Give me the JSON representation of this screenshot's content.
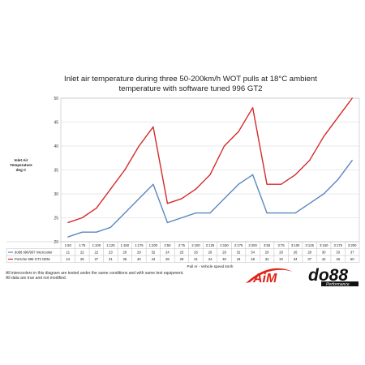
{
  "chart_data": {
    "type": "line",
    "title_lines": [
      "Inlet air temperature during three 50-200km/h WOT pulls at 18°C ambient",
      "temperature with software tuned 996 GT2"
    ],
    "ylabel_lines": [
      "Inlet Air",
      "Temperature",
      "deg C"
    ],
    "xlabel": "Pull nr - Vehicle speed km/h",
    "ylim": [
      20,
      50
    ],
    "yticks": [
      20,
      25,
      30,
      35,
      40,
      45,
      50
    ],
    "grid": true,
    "categories": [
      "1:50",
      "1:75",
      "1:100",
      "1:125",
      "1:150",
      "1:175",
      "1:200",
      "2:50",
      "2:75",
      "2:100",
      "2:125",
      "2:150",
      "2:175",
      "2:200",
      "3:50",
      "3:75",
      "3:100",
      "3:125",
      "3:150",
      "3:175",
      "3:200"
    ],
    "series": [
      {
        "name": "do88 996/997 Intercooler",
        "color": "#5b87c0",
        "values": [
          21,
          22,
          22,
          23,
          26,
          29,
          32,
          24,
          25,
          26,
          26,
          29,
          32,
          34,
          26,
          26,
          26,
          28,
          30,
          33,
          37
        ]
      },
      {
        "name": "Porsche 996 GT2 OEM",
        "color": "#d42a2a",
        "values": [
          24,
          25,
          27,
          31,
          35,
          40,
          44,
          28,
          29,
          31,
          34,
          40,
          43,
          48,
          32,
          32,
          34,
          37,
          42,
          46,
          50
        ]
      }
    ]
  },
  "footnotes": [
    "All intercoolers in this diagram are tested under the same conditions and with same test equipment.",
    "All data are true and not modified."
  ],
  "logos": {
    "aim_text": "AiM",
    "do88_text": "do88",
    "do88_sub": "Performance",
    "colors": {
      "aim_red": "#e2231a",
      "do88_black": "#111111"
    }
  }
}
